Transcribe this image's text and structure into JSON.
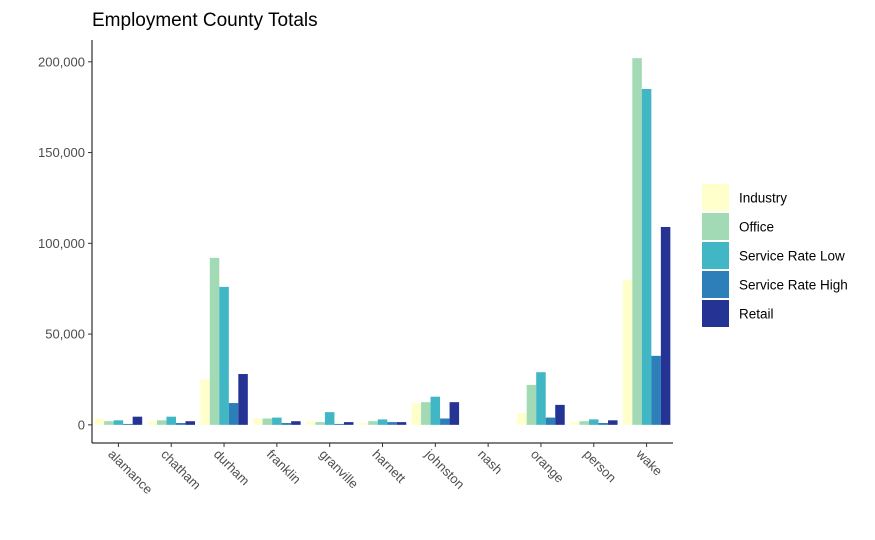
{
  "chart_data": {
    "type": "bar",
    "title": "Employment County Totals",
    "xlabel": "",
    "ylabel": "",
    "ylim": [
      -10000,
      212000
    ],
    "yticks": [
      0,
      50000,
      100000,
      150000,
      200000
    ],
    "ytick_labels": [
      "0",
      "50,000",
      "100,000",
      "150,000",
      "200,000"
    ],
    "grid": false,
    "legend_position": "right",
    "categories": [
      "alamance",
      "chatham",
      "durham",
      "franklin",
      "granville",
      "harnett",
      "johnston",
      "nash",
      "orange",
      "person",
      "wake"
    ],
    "series": [
      {
        "name": "Industry",
        "color": "#ffffcc",
        "values": [
          3500,
          2000,
          25000,
          3500,
          2000,
          1000,
          12000,
          0,
          6500,
          1500,
          80000
        ]
      },
      {
        "name": "Office",
        "color": "#a1dab4",
        "values": [
          2000,
          2500,
          92000,
          3500,
          1500,
          2000,
          12500,
          0,
          22000,
          2000,
          202000
        ]
      },
      {
        "name": "Service Rate Low",
        "color": "#41b6c4",
        "values": [
          2500,
          4500,
          76000,
          4000,
          7000,
          3000,
          15500,
          0,
          29000,
          3000,
          185000
        ]
      },
      {
        "name": "Service Rate High",
        "color": "#2c7fb8",
        "values": [
          500,
          1000,
          12000,
          1000,
          500,
          1500,
          3500,
          0,
          4000,
          1000,
          38000
        ]
      },
      {
        "name": "Retail",
        "color": "#253494",
        "values": [
          4500,
          2000,
          28000,
          2000,
          1500,
          1500,
          12500,
          0,
          11000,
          2500,
          109000
        ]
      }
    ]
  }
}
